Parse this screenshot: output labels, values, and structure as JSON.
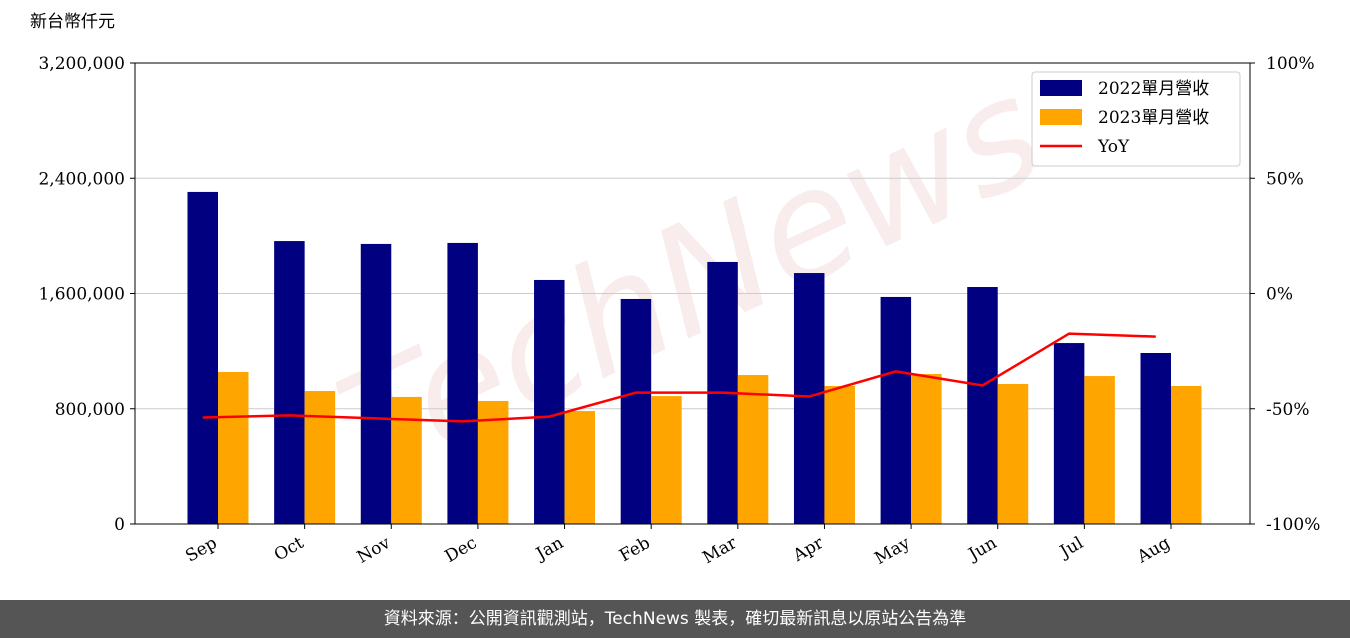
{
  "chart_data": {
    "type": "bar",
    "y_label": "新台幣仟元",
    "watermark": "TechNews",
    "categories": [
      "Sep",
      "Oct",
      "Nov",
      "Dec",
      "Jan",
      "Feb",
      "Mar",
      "Apr",
      "May",
      "Jun",
      "Jul",
      "Aug"
    ],
    "series": [
      {
        "name": "2022單月營收",
        "color": "#000080",
        "type": "bar",
        "values": [
          2305000,
          1964000,
          1944000,
          1951000,
          1694000,
          1562000,
          1819000,
          1742000,
          1576000,
          1645000,
          1256000,
          1187000
        ]
      },
      {
        "name": "2023單月營收",
        "color": "#ffa500",
        "type": "bar",
        "values": [
          1055000,
          923000,
          882000,
          854000,
          784000,
          888000,
          1034000,
          958000,
          1041000,
          972000,
          1027000,
          958000
        ]
      },
      {
        "name": "YoY",
        "color": "#ff0000",
        "type": "line",
        "axis": "y2",
        "values": [
          -53.8,
          -52.9,
          -54.2,
          -55.5,
          -53.4,
          -43.0,
          -43.0,
          -44.7,
          -33.8,
          -39.9,
          -17.4,
          -18.7
        ]
      }
    ],
    "ylim": [
      0,
      3200000
    ],
    "yticks": [
      0,
      {
        "value": 800000,
        "label": "800,000"
      },
      {
        "value": 1600000,
        "label": "1,600,000"
      },
      {
        "value": 2400000,
        "label": "2,400,000"
      },
      {
        "value": 3200000,
        "label": "3,200,000"
      }
    ],
    "y2lim": [
      -100,
      100
    ],
    "y2ticks": [
      {
        "value": -100,
        "label": "-100%"
      },
      {
        "value": -50,
        "label": "-50%"
      },
      {
        "value": 0,
        "label": "0%"
      },
      {
        "value": 50,
        "label": "50%"
      },
      {
        "value": 100,
        "label": "100%"
      }
    ],
    "grid": true,
    "legend": "upper right"
  },
  "footer": "資料來源：公開資訊觀測站，TechNews 製表，確切最新訊息以原站公告為準"
}
